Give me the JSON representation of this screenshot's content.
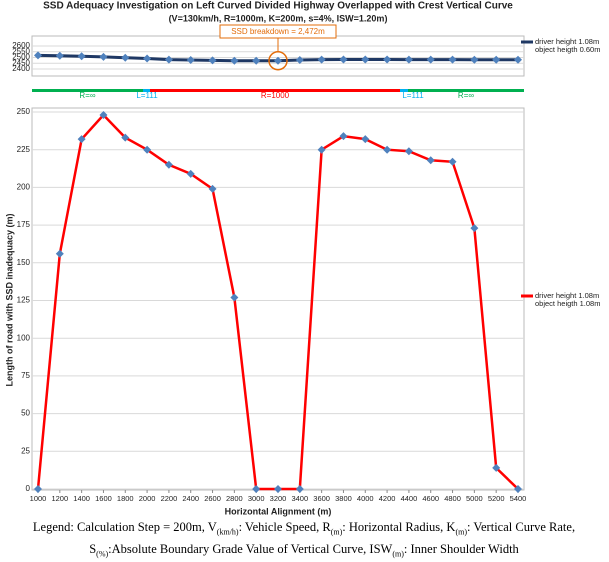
{
  "chart_data": [
    {
      "type": "line",
      "title": "SSD Adequacy Investigation on Left Curved Divided Highway Overlapped with Crest Vertical Curve",
      "subtitle": "(V=130km/h, R=1000m, K=200m, s=4%, ISW=1.20m)",
      "x": [
        1000,
        1200,
        1400,
        1600,
        1800,
        2000,
        2200,
        2400,
        2600,
        2800,
        3000,
        3200,
        3400,
        3600,
        3800,
        4000,
        4200,
        4400,
        4600,
        4800,
        5000,
        5200,
        5400
      ],
      "xlim": [
        1000,
        5400
      ],
      "ylim": [
        2400,
        2600
      ],
      "yticks": [
        2400,
        2450,
        2500,
        2550,
        2600
      ],
      "grid": true,
      "series": [
        {
          "name": "driver height 1.08m",
          "color": "#1f3864",
          "marker_color": "#4f81bd",
          "values": [
            2519,
            2515,
            2511,
            2505,
            2498,
            2491,
            2482,
            2478,
            2475,
            2472,
            2472,
            2472,
            2478,
            2482,
            2483,
            2483,
            2483,
            2482,
            2482,
            2481,
            2480,
            2480,
            2480
          ]
        }
      ],
      "legend_note": "object heigth 0.60m",
      "annotation": {
        "text": "SSD breakdown = 2,472m",
        "color": "#e36c09"
      },
      "alignment": [
        {
          "label": "R=∞",
          "color": "#00b050"
        },
        {
          "label": "L=111",
          "color": "#00b0f0"
        },
        {
          "label": "R=1000",
          "color": "#ff0000"
        },
        {
          "label": "L=111",
          "color": "#00b0f0"
        },
        {
          "label": "R=∞",
          "color": "#00b050"
        }
      ]
    },
    {
      "type": "line",
      "x": [
        1000,
        1200,
        1400,
        1600,
        1800,
        2000,
        2200,
        2400,
        2600,
        2800,
        3000,
        3200,
        3400,
        3600,
        3800,
        4000,
        4200,
        4400,
        4600,
        4800,
        5000,
        5200,
        5400
      ],
      "xlim": [
        1000,
        5400
      ],
      "xticks": [
        1000,
        1200,
        1400,
        1600,
        1800,
        2000,
        2200,
        2400,
        2600,
        2800,
        3000,
        3200,
        3400,
        3600,
        3800,
        4000,
        4200,
        4400,
        4600,
        4800,
        5000,
        5200,
        5400
      ],
      "x_label": "Horizontal Alignment (m)",
      "y_label": "Length of road with SSD inadequacy (m)",
      "ylim": [
        0,
        250
      ],
      "yticks": [
        0,
        25,
        50,
        75,
        100,
        125,
        150,
        175,
        200,
        225,
        250
      ],
      "grid": true,
      "series": [
        {
          "name": "driver height 1.08m",
          "color": "#ff0000",
          "marker_color": "#4f81bd",
          "values": [
            0,
            156,
            232,
            248,
            233,
            225,
            215,
            209,
            199,
            127,
            0,
            0,
            0,
            225,
            234,
            232,
            225,
            224,
            218,
            217,
            173,
            14,
            0
          ]
        }
      ],
      "legend_note": "object heigth 1.08m"
    }
  ],
  "footer": [
    "Legend:  Calculation Step = 200m, V",
    "(km/h)",
    ": Vehicle Speed,  R",
    "(m)",
    ": Horizontal Radius, K",
    "(m)",
    ": Vertical Curve Rate, S",
    "(%)",
    ":Absolute Boundary Grade Value of Vertical Curve, ISW",
    "(m)",
    ": Inner Shoulder Width"
  ]
}
